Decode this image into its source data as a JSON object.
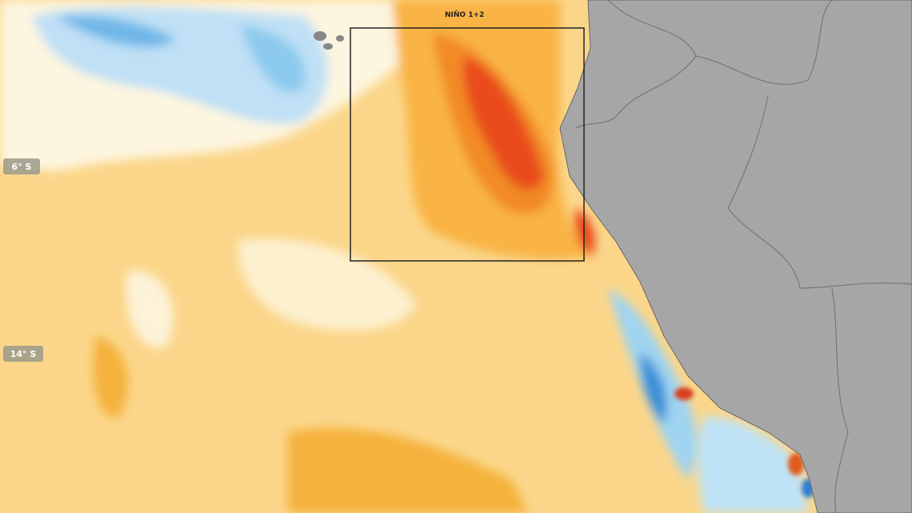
{
  "labels": {
    "region": "NIÑO 1+2",
    "lat_north": "6° S",
    "lat_south": "14° S"
  }
}
